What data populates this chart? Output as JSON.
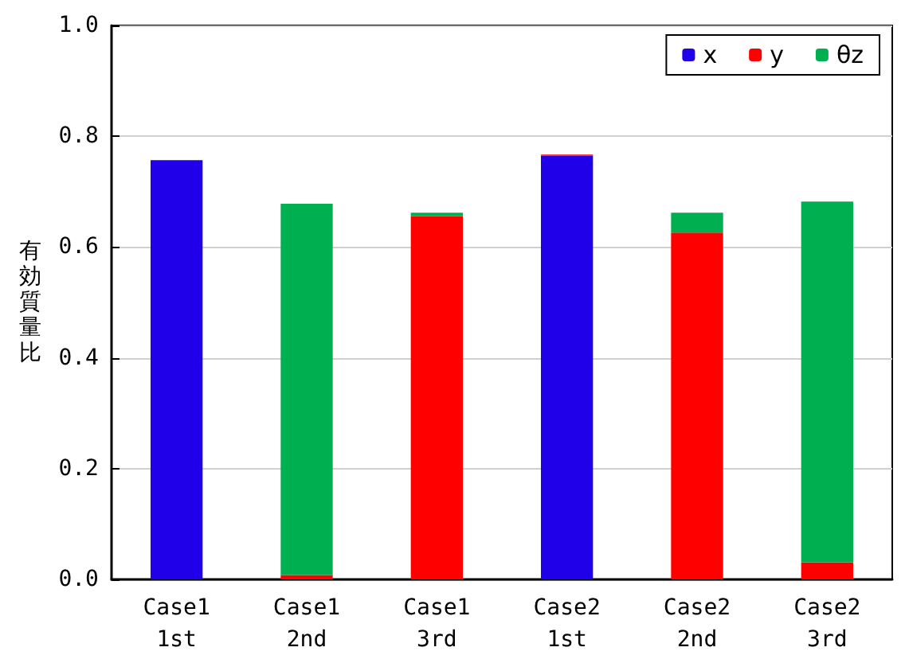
{
  "chart_data": {
    "type": "bar",
    "stacked": true,
    "ylabel": "有効質量比",
    "categories": [
      "Case1\n1st",
      "Case1\n2nd",
      "Case1\n3rd",
      "Case2\n1st",
      "Case2\n2nd",
      "Case2\n3rd"
    ],
    "series": [
      {
        "name": "x",
        "color": "#1f00e8",
        "values": [
          0.757,
          0,
          0,
          0.765,
          0,
          0
        ]
      },
      {
        "name": "y",
        "color": "#ff0000",
        "values": [
          0,
          0.008,
          0.656,
          0.002,
          0.626,
          0.031
        ]
      },
      {
        "name": "θz",
        "color": "#00b050",
        "values": [
          0,
          0.67,
          0.006,
          0,
          0.036,
          0.651
        ]
      }
    ],
    "ylim": [
      0,
      1
    ],
    "yticks": [
      {
        "value": 0,
        "label": "0.0"
      },
      {
        "value": 0.2,
        "label": "0.2"
      },
      {
        "value": 0.4,
        "label": "0.4"
      },
      {
        "value": 0.6,
        "label": "0.6"
      },
      {
        "value": 0.8,
        "label": "0.8"
      },
      {
        "value": 1,
        "label": "1.0"
      }
    ],
    "grid": "y",
    "legend": "top right"
  }
}
